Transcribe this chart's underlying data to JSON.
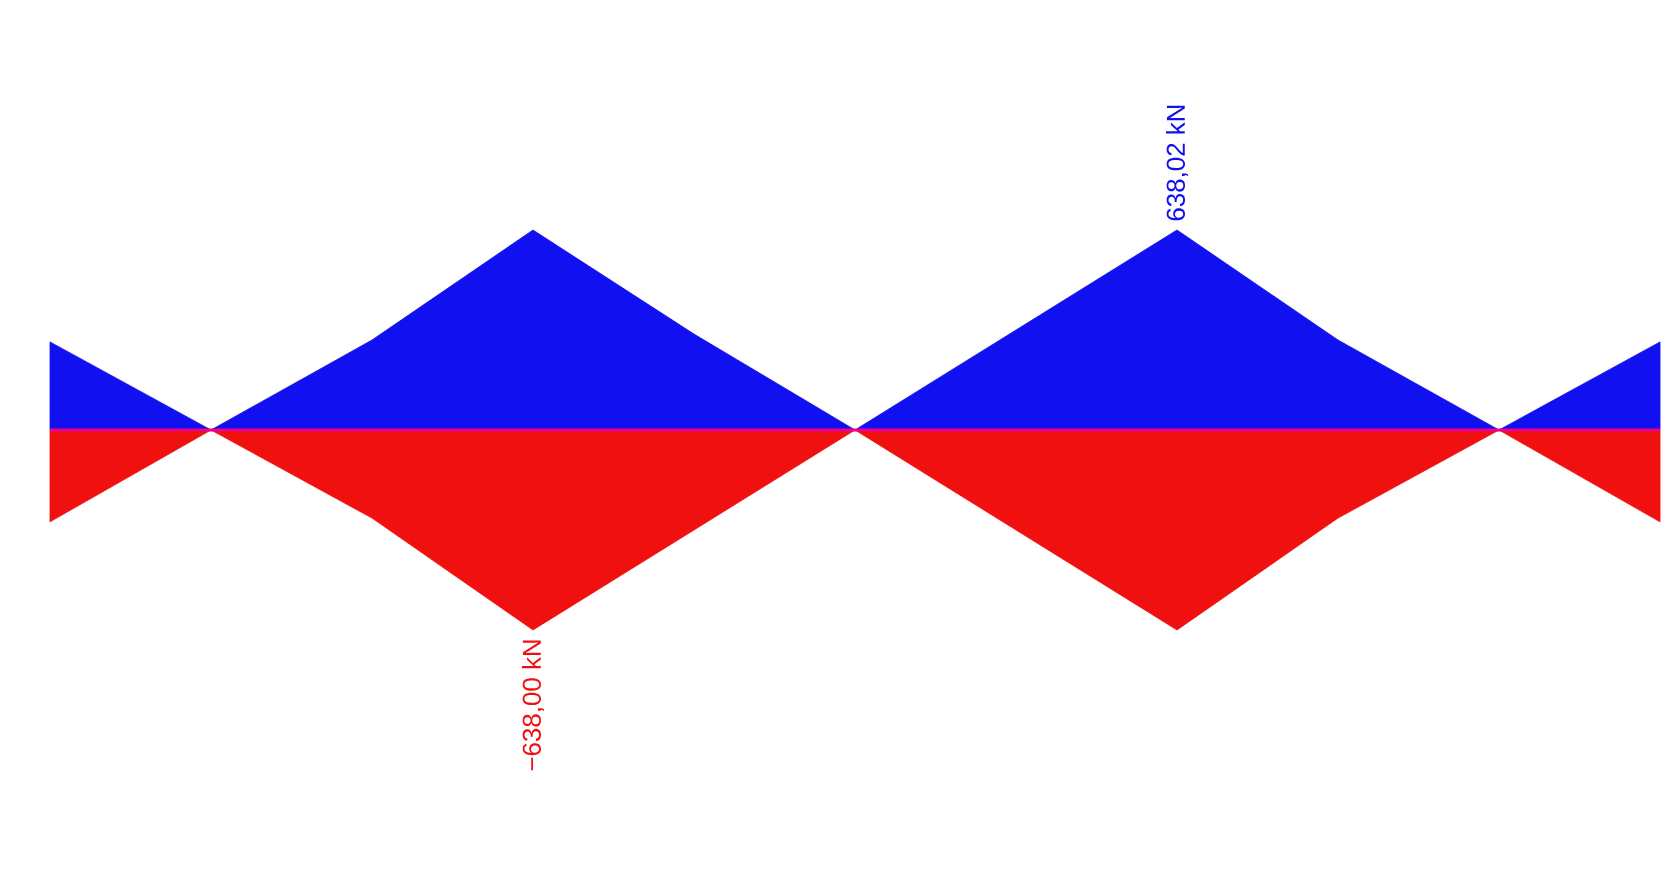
{
  "chart_data": {
    "type": "area",
    "categories": [
      null,
      null,
      null,
      null,
      null,
      null,
      null,
      null,
      null,
      null,
      null
    ],
    "series": [
      {
        "color": "#1010f0",
        "values": [
          281,
          0,
          287,
          638.02,
          306,
          0,
          319,
          638.02,
          287,
          0,
          281
        ],
        "value_labels": [
          null,
          null,
          null,
          null,
          null,
          null,
          null,
          "638,02 kN",
          null,
          null,
          null
        ]
      },
      {
        "color": "#f01010",
        "values": [
          -293,
          0,
          -281,
          -638.0,
          -319,
          0,
          -319,
          -638.0,
          -281,
          0,
          -293
        ],
        "value_labels": [
          null,
          null,
          null,
          "−638,00 kN",
          null,
          null,
          null,
          null,
          null,
          null,
          null
        ]
      }
    ],
    "ref_lines": [
      {
        "axis": "y",
        "value": 0,
        "color": "#ec008c"
      }
    ]
  }
}
